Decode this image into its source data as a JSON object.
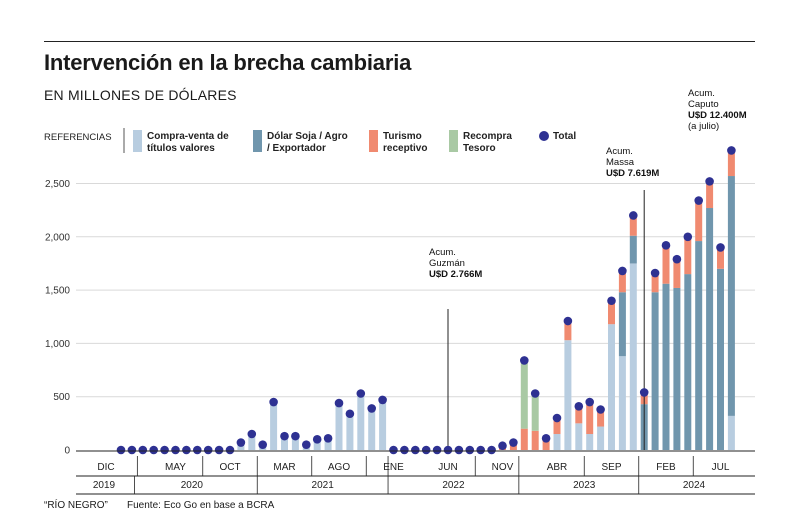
{
  "title": "Intervención en la brecha cambiaria",
  "subtitle": "EN MILLONES DE DÓLARES",
  "footer": {
    "brand": "“RÍO NEGRO”",
    "source": "Fuente: Eco Go en base a BCRA"
  },
  "legend": {
    "header": "REFERENCIAS",
    "items": [
      {
        "key": "compra",
        "line1": "Compra-venta de",
        "line2": "títulos valores",
        "color": "#b8cde0",
        "shape": "square"
      },
      {
        "key": "soja",
        "line1": "Dólar Soja / Agro",
        "line2": "/ Exportador",
        "color": "#7096ad",
        "shape": "square"
      },
      {
        "key": "turismo",
        "line1": "Turismo",
        "line2": "receptivo",
        "color": "#f08a70",
        "shape": "square"
      },
      {
        "key": "recompra",
        "line1": "Recompra",
        "line2": "Tesoro",
        "color": "#a9c9a4",
        "shape": "square"
      },
      {
        "key": "total",
        "line1": "Total",
        "line2": "",
        "color": "#2e3192",
        "shape": "circle"
      }
    ]
  },
  "annotations": [
    {
      "lines": [
        "Acum.",
        "Guzmán",
        "U$D 2.766M"
      ],
      "bold_last": true,
      "index": 30
    },
    {
      "lines": [
        "Acum.",
        "Massa",
        "U$D 7.619M"
      ],
      "bold_last": true,
      "index": 48
    },
    {
      "lines": [
        "Acum.",
        "Caputo",
        "U$D 12.400M",
        "(a julio)"
      ],
      "bold_last": false,
      "index": 56
    }
  ],
  "chart_data": {
    "type": "bar",
    "stacked": true,
    "ylim": [
      0,
      2800
    ],
    "yticks": [
      {
        "value": 0,
        "label": "0"
      },
      {
        "value": 500,
        "label": "500"
      },
      {
        "value": 1000,
        "label": "1,000"
      },
      {
        "value": 1500,
        "label": "1,500"
      },
      {
        "value": 2000,
        "label": "2,000"
      },
      {
        "value": 2500,
        "label": "2,500"
      }
    ],
    "grid": true,
    "month_labels": [
      {
        "label": "DIC",
        "index": 0
      },
      {
        "label": "MAY",
        "index": 5
      },
      {
        "label": "OCT",
        "index": 10
      },
      {
        "label": "MAR",
        "index": 15
      },
      {
        "label": "AGO",
        "index": 20
      },
      {
        "label": "ENE",
        "index": 25
      },
      {
        "label": "JUN",
        "index": 30
      },
      {
        "label": "NOV",
        "index": 35
      },
      {
        "label": "ABR",
        "index": 40
      },
      {
        "label": "SEP",
        "index": 45
      },
      {
        "label": "FEB",
        "index": 50
      },
      {
        "label": "JUL",
        "index": 55
      }
    ],
    "years": [
      {
        "label": "2019",
        "from": -0.5,
        "to": 0.5
      },
      {
        "label": "2020",
        "from": 0.5,
        "to": 12.5
      },
      {
        "label": "2021",
        "from": 12.5,
        "to": 24.5
      },
      {
        "label": "2022",
        "from": 24.5,
        "to": 36.5
      },
      {
        "label": "2023",
        "from": 36.5,
        "to": 48.5
      },
      {
        "label": "2024",
        "from": 48.5,
        "to": 55.5
      }
    ],
    "series": [
      {
        "key": "compra",
        "name": "Compra-venta de títulos valores",
        "color": "#b8cde0",
        "values": [
          0,
          0,
          0,
          0,
          0,
          0,
          0,
          0,
          0,
          0,
          0,
          70,
          150,
          50,
          450,
          130,
          130,
          50,
          100,
          110,
          440,
          340,
          530,
          390,
          470,
          0,
          0,
          0,
          0,
          0,
          0,
          0,
          0,
          0,
          0,
          0,
          0,
          0,
          0,
          0,
          150,
          1030,
          250,
          150,
          220,
          1180,
          880,
          1750,
          0,
          0,
          0,
          0,
          0,
          0,
          0,
          0,
          320
        ]
      },
      {
        "key": "soja",
        "name": "Dólar Soja / Agro / Exportador",
        "color": "#7096ad",
        "values": [
          0,
          0,
          0,
          0,
          0,
          0,
          0,
          0,
          0,
          0,
          0,
          0,
          0,
          0,
          0,
          0,
          0,
          0,
          0,
          0,
          0,
          0,
          0,
          0,
          0,
          0,
          0,
          0,
          0,
          0,
          0,
          0,
          0,
          0,
          0,
          0,
          0,
          0,
          0,
          0,
          0,
          0,
          0,
          0,
          0,
          0,
          600,
          260,
          430,
          1480,
          1560,
          1520,
          1650,
          1960,
          2270,
          1700,
          2250
        ]
      },
      {
        "key": "turismo",
        "name": "Turismo receptivo",
        "color": "#f08a70",
        "values": [
          0,
          0,
          0,
          0,
          0,
          0,
          0,
          0,
          0,
          0,
          0,
          0,
          0,
          0,
          0,
          0,
          0,
          0,
          0,
          0,
          0,
          0,
          0,
          0,
          0,
          0,
          0,
          0,
          0,
          0,
          0,
          0,
          0,
          0,
          0,
          40,
          70,
          200,
          180,
          110,
          150,
          180,
          160,
          300,
          160,
          220,
          200,
          190,
          110,
          180,
          360,
          270,
          350,
          380,
          250,
          200,
          240
        ]
      },
      {
        "key": "recompra",
        "name": "Recompra Tesoro",
        "color": "#a9c9a4",
        "values": [
          0,
          0,
          0,
          0,
          0,
          0,
          0,
          0,
          0,
          0,
          0,
          0,
          0,
          0,
          0,
          0,
          0,
          0,
          0,
          0,
          0,
          0,
          0,
          0,
          0,
          0,
          0,
          0,
          0,
          0,
          0,
          0,
          0,
          0,
          0,
          0,
          0,
          640,
          350,
          0,
          0,
          0,
          0,
          0,
          0,
          0,
          0,
          0,
          0,
          0,
          0,
          0,
          0,
          0,
          0,
          0,
          0
        ]
      }
    ],
    "totals": [
      0,
      0,
      0,
      0,
      0,
      0,
      0,
      0,
      0,
      0,
      0,
      70,
      150,
      50,
      450,
      130,
      130,
      50,
      100,
      110,
      440,
      340,
      530,
      390,
      470,
      0,
      0,
      0,
      0,
      0,
      0,
      0,
      0,
      0,
      0,
      40,
      70,
      840,
      530,
      110,
      300,
      1210,
      410,
      450,
      380,
      1400,
      1680,
      2200,
      540,
      1660,
      1920,
      1790,
      2000,
      2340,
      2520,
      1900,
      2810
    ]
  }
}
